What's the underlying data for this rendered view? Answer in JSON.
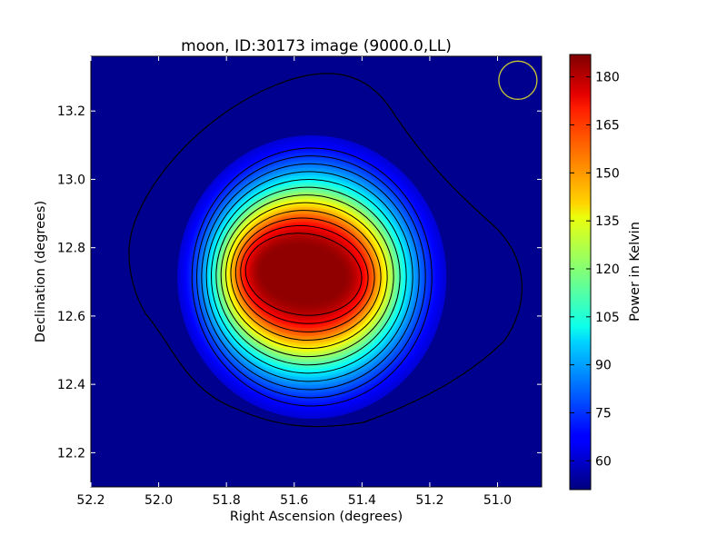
{
  "chart_data": {
    "type": "heatmap",
    "title": "moon, ID:30173 image (9000.0,LL)",
    "xlabel": "Right Ascension (degrees)",
    "ylabel": "Declination (degrees)",
    "colorbar_label": "Power in Kelvin",
    "x_range": [
      52.2,
      50.87
    ],
    "y_range": [
      12.1,
      13.36
    ],
    "x_ticks": [
      "52.2",
      "52.0",
      "51.8",
      "51.6",
      "51.4",
      "51.2",
      "51.0"
    ],
    "y_ticks": [
      "12.2",
      "12.4",
      "12.6",
      "12.8",
      "13.0",
      "13.2"
    ],
    "colorbar_ticks": [
      "60",
      "75",
      "90",
      "105",
      "120",
      "135",
      "150",
      "165",
      "180"
    ],
    "color_range": [
      51,
      187
    ],
    "colormap": "jet",
    "peak": {
      "ra": 51.58,
      "dec": 12.73,
      "value": 185
    },
    "background_value": 53,
    "contour_count": 12,
    "contour_color": "#000000",
    "beam_marker": {
      "ra": 50.94,
      "dec": 13.29,
      "color": "#c8c832"
    },
    "grid": false
  }
}
